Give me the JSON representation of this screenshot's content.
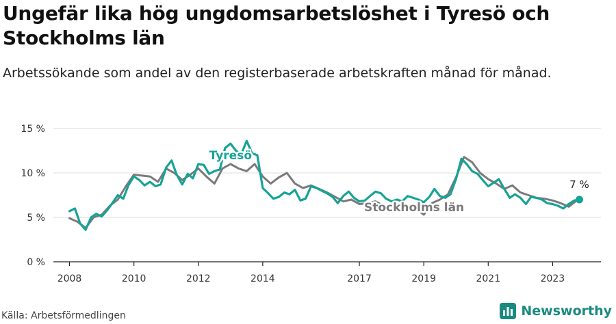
{
  "title": "Ungefär lika hög ungdomsarbetslöshet i Tyresö och Stockholms län",
  "subtitle": "Arbetssökande som andel av den registerbaserade arbetskraften månad för månad.",
  "source": "Källa: Arbetsförmedlingen",
  "brand": "Newsworthy",
  "colors": {
    "tyreso": "#16a396",
    "stockholm": "#7a7a7c",
    "brand": "#1a8a80",
    "grid": "#dddddd"
  },
  "chart_data": {
    "type": "line",
    "title": "Ungefär lika hög ungdomsarbetslöshet i Tyresö och Stockholms län",
    "ylabel": "",
    "xlabel": "",
    "ylim": [
      0,
      15
    ],
    "xlim": [
      2007.5,
      2024.5
    ],
    "y_ticks": [
      0,
      5,
      10,
      15
    ],
    "y_tick_labels": [
      "0 %",
      "5 %",
      "10 %",
      "15 %"
    ],
    "x_ticks": [
      2008,
      2010,
      2012,
      2014,
      2017,
      2019,
      2021,
      2023
    ],
    "x_tick_labels": [
      "2008",
      "2010",
      "2012",
      "2014",
      "2017",
      "2019",
      "2021",
      "2023"
    ],
    "end_label": "7 %",
    "series": [
      {
        "name": "Stockholms län",
        "label": "Stockholms län",
        "color": "#7a7a7c",
        "x": [
          2008.0,
          2008.25,
          2008.5,
          2008.75,
          2009.0,
          2009.25,
          2009.5,
          2009.75,
          2010.0,
          2010.25,
          2010.5,
          2010.75,
          2011.0,
          2011.25,
          2011.5,
          2011.75,
          2012.0,
          2012.25,
          2012.5,
          2012.75,
          2013.0,
          2013.25,
          2013.5,
          2013.75,
          2014.0,
          2014.25,
          2014.5,
          2014.75,
          2015.0,
          2015.25,
          2015.5,
          2015.75,
          2016.0,
          2016.25,
          2016.5,
          2016.75,
          2017.0,
          2017.25,
          2017.5,
          2017.75,
          2018.0,
          2018.25,
          2018.5,
          2018.75,
          2019.0,
          2019.25,
          2019.5,
          2019.75,
          2020.0,
          2020.25,
          2020.5,
          2020.75,
          2021.0,
          2021.25,
          2021.5,
          2021.75,
          2022.0,
          2022.25,
          2022.5,
          2022.75,
          2023.0,
          2023.25,
          2023.5,
          2023.75
        ],
        "values": [
          4.9,
          4.5,
          3.8,
          5.0,
          5.3,
          6.3,
          7.0,
          8.5,
          9.8,
          9.7,
          9.6,
          9.0,
          10.5,
          10.0,
          9.2,
          9.8,
          10.5,
          9.6,
          8.8,
          10.5,
          11.0,
          10.5,
          10.2,
          11.0,
          9.6,
          8.8,
          9.5,
          10.0,
          8.8,
          8.3,
          8.6,
          8.2,
          7.8,
          7.3,
          6.8,
          7.0,
          6.5,
          6.6,
          6.8,
          6.3,
          6.1,
          6.2,
          6.3,
          6.0,
          5.3,
          6.6,
          7.0,
          7.6,
          9.5,
          11.8,
          11.2,
          10.0,
          9.3,
          8.8,
          8.2,
          8.6,
          7.8,
          7.5,
          7.2,
          7.1,
          6.9,
          6.6,
          6.2,
          6.9
        ]
      },
      {
        "name": "Tyresö",
        "label": "Tyresö",
        "color": "#16a396",
        "x": [
          2008.0,
          2008.17,
          2008.33,
          2008.5,
          2008.67,
          2008.83,
          2009.0,
          2009.17,
          2009.33,
          2009.5,
          2009.67,
          2009.83,
          2010.0,
          2010.17,
          2010.33,
          2010.5,
          2010.67,
          2010.83,
          2011.0,
          2011.17,
          2011.33,
          2011.5,
          2011.67,
          2011.83,
          2012.0,
          2012.17,
          2012.33,
          2012.5,
          2012.67,
          2012.83,
          2013.0,
          2013.17,
          2013.33,
          2013.5,
          2013.67,
          2013.83,
          2014.0,
          2014.17,
          2014.33,
          2014.5,
          2014.67,
          2014.83,
          2015.0,
          2015.17,
          2015.33,
          2015.5,
          2015.67,
          2015.83,
          2016.0,
          2016.17,
          2016.33,
          2016.5,
          2016.67,
          2016.83,
          2017.0,
          2017.17,
          2017.33,
          2017.5,
          2017.67,
          2017.83,
          2018.0,
          2018.17,
          2018.33,
          2018.5,
          2018.67,
          2018.83,
          2019.0,
          2019.17,
          2019.33,
          2019.5,
          2019.67,
          2019.83,
          2020.0,
          2020.17,
          2020.33,
          2020.5,
          2020.67,
          2020.83,
          2021.0,
          2021.17,
          2021.33,
          2021.5,
          2021.67,
          2021.83,
          2022.0,
          2022.17,
          2022.33,
          2022.5,
          2022.67,
          2022.83,
          2023.0,
          2023.17,
          2023.33,
          2023.5,
          2023.67,
          2023.83
        ],
        "values": [
          5.7,
          6.0,
          4.3,
          3.6,
          5.0,
          5.4,
          5.1,
          5.8,
          6.6,
          7.5,
          7.1,
          8.6,
          9.6,
          9.2,
          8.6,
          9.0,
          8.5,
          8.7,
          10.6,
          11.4,
          9.8,
          8.7,
          9.9,
          9.4,
          11.0,
          10.9,
          9.9,
          10.2,
          10.4,
          12.8,
          13.3,
          12.5,
          12.1,
          13.6,
          12.2,
          12.0,
          8.3,
          7.7,
          7.1,
          7.3,
          7.8,
          7.6,
          8.1,
          6.9,
          7.1,
          8.5,
          8.3,
          8.0,
          7.7,
          7.3,
          6.6,
          7.4,
          7.9,
          7.2,
          6.8,
          6.9,
          7.4,
          7.9,
          7.7,
          7.1,
          6.8,
          7.0,
          6.8,
          7.4,
          7.2,
          7.0,
          6.7,
          7.3,
          8.2,
          7.4,
          7.2,
          7.6,
          9.3,
          11.6,
          11.0,
          10.2,
          9.9,
          9.2,
          8.5,
          8.9,
          9.3,
          8.2,
          7.2,
          7.6,
          7.2,
          6.5,
          7.3,
          7.2,
          7.0,
          6.6,
          6.5,
          6.3,
          6.0,
          6.5,
          6.9,
          7.0
        ]
      }
    ]
  }
}
